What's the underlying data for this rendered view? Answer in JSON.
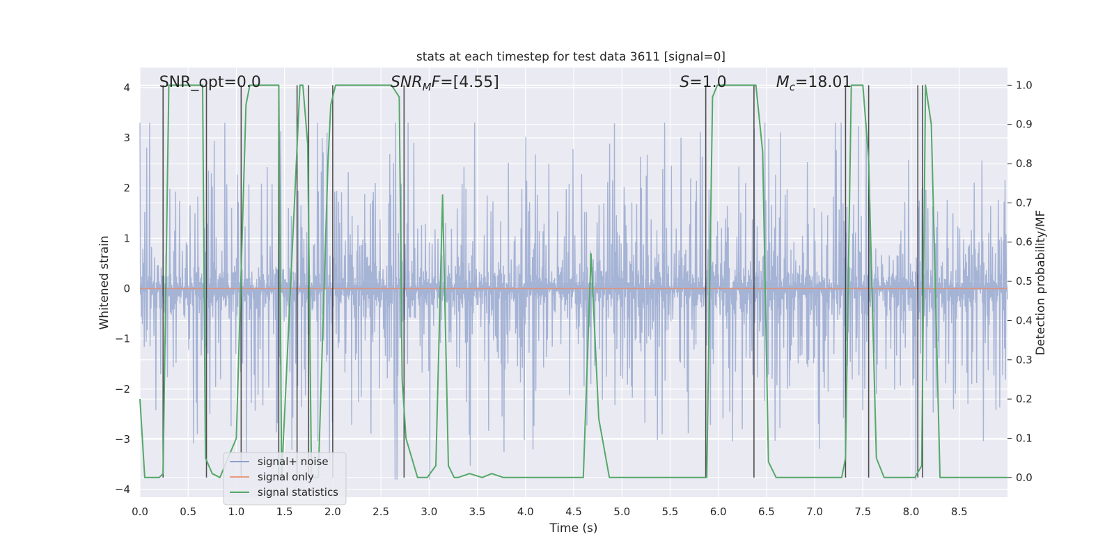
{
  "chart_data": {
    "type": "line",
    "title": "stats at each timestep for test data 3611 [signal=0]",
    "xlabel": "Time (s)",
    "ylabel": "Whitened strain",
    "y2label": "Detection probability/MF",
    "xlim": [
      0.0,
      9.0
    ],
    "ylim": [
      -4.15,
      4.4
    ],
    "y2lim": [
      -0.05,
      1.045
    ],
    "x_ticks": [
      "0.0",
      "0.5",
      "1.0",
      "1.5",
      "2.0",
      "2.5",
      "3.0",
      "3.5",
      "4.0",
      "4.5",
      "5.0",
      "5.5",
      "6.0",
      "6.5",
      "7.0",
      "7.5",
      "8.0",
      "8.5"
    ],
    "x_tick_values": [
      0,
      0.5,
      1,
      1.5,
      2,
      2.5,
      3,
      3.5,
      4,
      4.5,
      5,
      5.5,
      6,
      6.5,
      7,
      7.5,
      8,
      8.5
    ],
    "y_ticks": [
      "4",
      "3",
      "2",
      "1",
      "0",
      "−1",
      "−2",
      "−3",
      "−4"
    ],
    "y_tick_values": [
      4,
      3,
      2,
      1,
      0,
      -1,
      -2,
      -3,
      -4
    ],
    "y2_ticks": [
      "1.0",
      "0.9",
      "0.8",
      "0.7",
      "0.6",
      "0.5",
      "0.4",
      "0.3",
      "0.2",
      "0.1",
      "0.0"
    ],
    "y2_tick_values": [
      1.0,
      0.9,
      0.8,
      0.7,
      0.6,
      0.5,
      0.4,
      0.3,
      0.2,
      0.1,
      0.0
    ],
    "annotations": [
      {
        "id": "snr-opt",
        "text": "SNR_opt=0.0",
        "x": 0.2,
        "y": 4.0
      },
      {
        "id": "snr-mf",
        "text": "SNR",
        "sub": "M",
        "rest": "F=[4.55]",
        "italic": true,
        "x": 2.6,
        "y": 4.0
      },
      {
        "id": "s-value",
        "text": "S",
        "rest": "=1.0",
        "italic": true,
        "x": 5.6,
        "y": 4.0
      },
      {
        "id": "mc-value",
        "text": "M",
        "sub": "c",
        "rest": "=18.01",
        "italic": true,
        "x": 6.6,
        "y": 4.0
      }
    ],
    "legend": {
      "position": "lower-left",
      "entries": [
        {
          "label": "signal+ noise",
          "color": "#8da0cb"
        },
        {
          "label": "signal only",
          "color": "#e99a7c"
        },
        {
          "label": "signal statistics",
          "color": "#55a868"
        }
      ]
    },
    "series": [
      {
        "name": "signal+ noise",
        "color": "#8da0cb",
        "alpha": 0.75,
        "amplitude": 3.3,
        "n_points": 1800
      },
      {
        "name": "signal only",
        "color": "#e58c6c",
        "constant": 0.0
      },
      {
        "name": "signal statistics",
        "axis": "right",
        "color": "#55a868",
        "x": [
          0.0,
          0.05,
          0.2,
          0.24,
          0.3,
          0.65,
          0.68,
          0.75,
          0.83,
          1.0,
          1.1,
          1.14,
          1.2,
          1.44,
          1.47,
          1.66,
          1.69,
          1.74,
          1.78,
          1.85,
          1.95,
          1.98,
          2.03,
          2.61,
          2.69,
          2.72,
          2.76,
          2.88,
          2.98,
          3.07,
          3.14,
          3.2,
          3.26,
          3.3,
          3.42,
          3.55,
          3.65,
          3.77,
          4.05,
          4.6,
          4.68,
          4.76,
          4.87,
          5.88,
          5.94,
          5.99,
          6.39,
          6.46,
          6.52,
          6.6,
          7.28,
          7.32,
          7.38,
          7.5,
          7.56,
          7.64,
          7.72,
          8.04,
          8.11,
          8.15,
          8.21,
          8.3,
          9.0
        ],
        "values": [
          0.2,
          0.0,
          0.0,
          0.01,
          1.0,
          1.0,
          0.05,
          0.01,
          0.0,
          0.1,
          0.95,
          1.0,
          1.0,
          1.0,
          0.0,
          1.0,
          1.0,
          0.85,
          0.0,
          0.0,
          0.8,
          0.95,
          1.0,
          1.0,
          0.97,
          0.25,
          0.1,
          0.0,
          0.0,
          0.03,
          0.72,
          0.03,
          0.0,
          0.0,
          0.01,
          0.0,
          0.01,
          0.0,
          0.0,
          0.0,
          0.57,
          0.15,
          0.0,
          0.0,
          0.97,
          1.0,
          1.0,
          0.83,
          0.04,
          0.0,
          0.0,
          0.05,
          1.0,
          1.0,
          0.81,
          0.05,
          0.0,
          0.0,
          0.03,
          1.0,
          0.9,
          0.0,
          0.0
        ]
      }
    ],
    "vertical_markers": {
      "color": "#333333",
      "x": [
        0.24,
        0.69,
        1.05,
        1.44,
        1.63,
        1.75,
        2.0,
        2.74,
        5.87,
        6.37,
        7.32,
        7.56,
        8.07,
        8.12
      ],
      "y2_range": [
        0.0,
        1.0
      ]
    }
  }
}
